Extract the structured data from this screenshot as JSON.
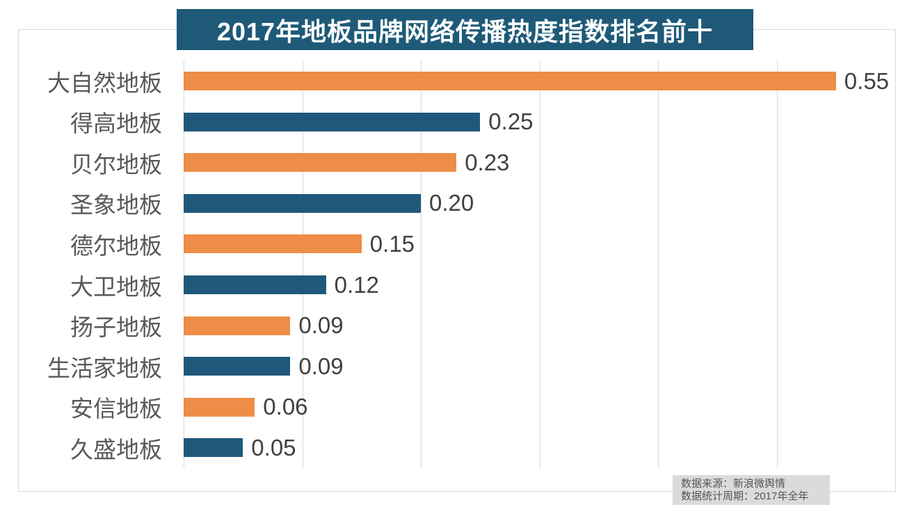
{
  "page": {
    "background": "#FFFFFF"
  },
  "title_banner": {
    "background": "#1E5A78",
    "text_color": "#FFFFFF"
  },
  "chart_data": {
    "type": "bar",
    "orientation": "horizontal",
    "title": "2017年地板品牌网络传播热度指数排名前十",
    "categories": [
      "大自然地板",
      "得高地板",
      "贝尔地板",
      "圣象地板",
      "德尔地板",
      "大卫地板",
      "扬子地板",
      "生活家地板",
      "安信地板",
      "久盛地板"
    ],
    "values": [
      0.55,
      0.25,
      0.23,
      0.2,
      0.15,
      0.12,
      0.09,
      0.09,
      0.06,
      0.05
    ],
    "value_labels": [
      "0.55",
      "0.25",
      "0.23",
      "0.20",
      "0.15",
      "0.12",
      "0.09",
      "0.09",
      "0.06",
      "0.05"
    ],
    "xlabel": "",
    "ylabel": "",
    "xlim": [
      0,
      0.6
    ],
    "gridline_step": 0.1,
    "grid": true,
    "legend": "none",
    "bar_colors_alternating": [
      "#EE8D47",
      "#20587C"
    ],
    "category_label_color": "#595959",
    "value_label_color": "#404040",
    "gridline_color": "#D9D9D9",
    "frame_color": "#D9D9D9"
  },
  "footer": {
    "source_line": "数据来源：新浪微舆情",
    "period_line": "数据统计周期：2017年全年",
    "background": "#DBDBDB",
    "text_color": "#555555"
  }
}
